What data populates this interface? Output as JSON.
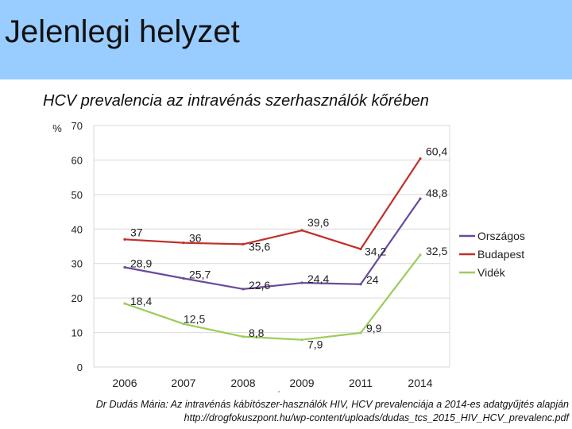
{
  "slide": {
    "title": "Jelenlegi helyzet",
    "header_color": "#99ccff",
    "source_line1": "Dr Dudás Mária: Az intravénás kábítószer-használók HIV, HCV prevalenciája a 2014-es adatgyűjtés alapján",
    "source_line2": "http://drogfokuszpont.hu/wp-content/uploads/dudas_tcs_2015_HIV_HCV_prevalenc.pdf"
  },
  "chart_data": {
    "type": "line",
    "title": "HCV prevalencia az intravénás szerhasználók kőrében",
    "ylabel": "%",
    "xlabel": "",
    "categories": [
      "2006",
      "2007",
      "2008",
      "2009",
      "2011",
      "2014"
    ],
    "ylim": [
      0,
      70
    ],
    "yticks": [
      0,
      10,
      20,
      30,
      40,
      50,
      60,
      70
    ],
    "grid": true,
    "legend_position": "right",
    "series": [
      {
        "name": "Országos",
        "color": "#6a4a9c",
        "values": [
          28.9,
          25.7,
          22.6,
          24.4,
          24,
          48.8
        ],
        "labels": [
          "28,9",
          "25,7",
          "22,6",
          "24,4",
          "24",
          "48,8"
        ]
      },
      {
        "name": "Budapest",
        "color": "#c0302a",
        "values": [
          37,
          36,
          35.6,
          39.6,
          34.2,
          60.4
        ],
        "labels": [
          "37",
          "36",
          "35,6",
          "39,6",
          "34,2",
          "60,4"
        ]
      },
      {
        "name": "Vidék",
        "color": "#9ccc5a",
        "values": [
          18.4,
          12.5,
          8.8,
          7.9,
          9.9,
          32.5
        ],
        "labels": [
          "18,4",
          "12,5",
          "8,8",
          "7,9",
          "9,9",
          "32,5"
        ]
      }
    ]
  }
}
